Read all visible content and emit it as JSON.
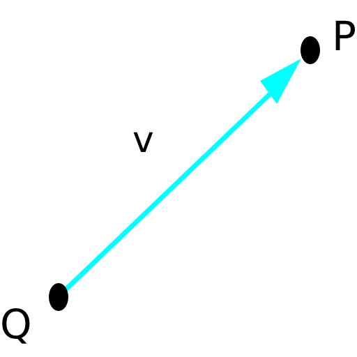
{
  "diagram": {
    "points": {
      "p": {
        "label": "P"
      },
      "q": {
        "label": "Q"
      }
    },
    "vector": {
      "label": "v"
    },
    "colors": {
      "vector": "#00ffff",
      "points": "#000000",
      "text": "#000000"
    }
  }
}
